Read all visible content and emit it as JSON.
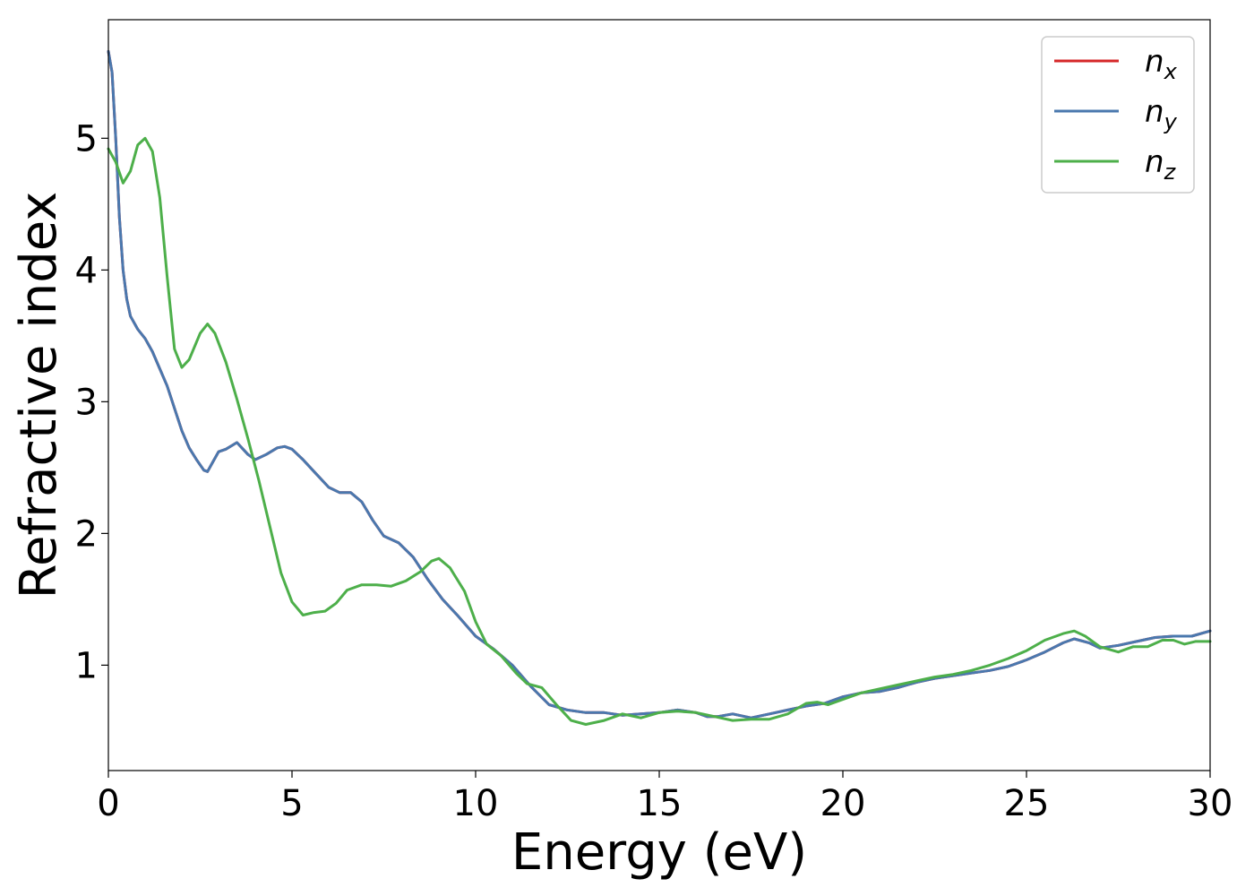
{
  "chart_data": {
    "type": "line",
    "xlabel": "Energy (eV)",
    "ylabel": "Refractive index",
    "xlim": [
      0,
      30
    ],
    "ylim": [
      0.2,
      5.9
    ],
    "xticks": [
      "0",
      "5",
      "10",
      "15",
      "20",
      "25",
      "30"
    ],
    "yticks": [
      "1",
      "2",
      "3",
      "4",
      "5"
    ],
    "grid": false,
    "legend_position": "top-right",
    "series": [
      {
        "name": "n",
        "sub": "x",
        "color": "#d62728",
        "points": [
          [
            0,
            5.66
          ],
          [
            0.1,
            5.5
          ],
          [
            0.2,
            5.0
          ],
          [
            0.3,
            4.4
          ],
          [
            0.4,
            4.0
          ],
          [
            0.5,
            3.78
          ],
          [
            0.6,
            3.65
          ],
          [
            0.8,
            3.55
          ],
          [
            1.0,
            3.48
          ],
          [
            1.2,
            3.38
          ],
          [
            1.4,
            3.25
          ],
          [
            1.6,
            3.12
          ],
          [
            1.8,
            2.95
          ],
          [
            2.0,
            2.78
          ],
          [
            2.2,
            2.65
          ],
          [
            2.4,
            2.56
          ],
          [
            2.6,
            2.48
          ],
          [
            2.7,
            2.47
          ],
          [
            2.8,
            2.52
          ],
          [
            3.0,
            2.62
          ],
          [
            3.2,
            2.64
          ],
          [
            3.5,
            2.69
          ],
          [
            3.8,
            2.6
          ],
          [
            4.0,
            2.56
          ],
          [
            4.3,
            2.6
          ],
          [
            4.6,
            2.65
          ],
          [
            4.8,
            2.66
          ],
          [
            5.0,
            2.64
          ],
          [
            5.3,
            2.56
          ],
          [
            5.6,
            2.47
          ],
          [
            6.0,
            2.35
          ],
          [
            6.3,
            2.31
          ],
          [
            6.6,
            2.31
          ],
          [
            6.9,
            2.24
          ],
          [
            7.2,
            2.1
          ],
          [
            7.5,
            1.98
          ],
          [
            7.9,
            1.93
          ],
          [
            8.3,
            1.82
          ],
          [
            8.7,
            1.65
          ],
          [
            9.1,
            1.5
          ],
          [
            9.5,
            1.38
          ],
          [
            10.0,
            1.22
          ],
          [
            10.5,
            1.12
          ],
          [
            11.0,
            1.0
          ],
          [
            11.5,
            0.84
          ],
          [
            12.0,
            0.7
          ],
          [
            12.5,
            0.66
          ],
          [
            13.0,
            0.64
          ],
          [
            13.5,
            0.64
          ],
          [
            14.0,
            0.62
          ],
          [
            14.5,
            0.63
          ],
          [
            15.0,
            0.64
          ],
          [
            15.5,
            0.66
          ],
          [
            16.0,
            0.64
          ],
          [
            16.3,
            0.61
          ],
          [
            16.6,
            0.61
          ],
          [
            17.0,
            0.63
          ],
          [
            17.5,
            0.6
          ],
          [
            18.0,
            0.63
          ],
          [
            18.5,
            0.66
          ],
          [
            19.0,
            0.69
          ],
          [
            19.5,
            0.71
          ],
          [
            20.0,
            0.76
          ],
          [
            20.5,
            0.79
          ],
          [
            21.0,
            0.8
          ],
          [
            21.5,
            0.83
          ],
          [
            22.0,
            0.87
          ],
          [
            22.5,
            0.9
          ],
          [
            23.0,
            0.92
          ],
          [
            23.5,
            0.94
          ],
          [
            24.0,
            0.96
          ],
          [
            24.5,
            0.99
          ],
          [
            25.0,
            1.04
          ],
          [
            25.5,
            1.1
          ],
          [
            26.0,
            1.17
          ],
          [
            26.3,
            1.2
          ],
          [
            26.7,
            1.17
          ],
          [
            27.0,
            1.13
          ],
          [
            27.5,
            1.15
          ],
          [
            28.0,
            1.18
          ],
          [
            28.5,
            1.21
          ],
          [
            29.0,
            1.22
          ],
          [
            29.5,
            1.22
          ],
          [
            30.0,
            1.26
          ]
        ]
      },
      {
        "name": "n",
        "sub": "y",
        "color": "#4a78ae",
        "points": [
          [
            0,
            5.66
          ],
          [
            0.1,
            5.5
          ],
          [
            0.2,
            5.0
          ],
          [
            0.3,
            4.4
          ],
          [
            0.4,
            4.0
          ],
          [
            0.5,
            3.78
          ],
          [
            0.6,
            3.65
          ],
          [
            0.8,
            3.55
          ],
          [
            1.0,
            3.48
          ],
          [
            1.2,
            3.38
          ],
          [
            1.4,
            3.25
          ],
          [
            1.6,
            3.12
          ],
          [
            1.8,
            2.95
          ],
          [
            2.0,
            2.78
          ],
          [
            2.2,
            2.65
          ],
          [
            2.4,
            2.56
          ],
          [
            2.6,
            2.48
          ],
          [
            2.7,
            2.47
          ],
          [
            2.8,
            2.52
          ],
          [
            3.0,
            2.62
          ],
          [
            3.2,
            2.64
          ],
          [
            3.5,
            2.69
          ],
          [
            3.8,
            2.6
          ],
          [
            4.0,
            2.56
          ],
          [
            4.3,
            2.6
          ],
          [
            4.6,
            2.65
          ],
          [
            4.8,
            2.66
          ],
          [
            5.0,
            2.64
          ],
          [
            5.3,
            2.56
          ],
          [
            5.6,
            2.47
          ],
          [
            6.0,
            2.35
          ],
          [
            6.3,
            2.31
          ],
          [
            6.6,
            2.31
          ],
          [
            6.9,
            2.24
          ],
          [
            7.2,
            2.1
          ],
          [
            7.5,
            1.98
          ],
          [
            7.9,
            1.93
          ],
          [
            8.3,
            1.82
          ],
          [
            8.7,
            1.65
          ],
          [
            9.1,
            1.5
          ],
          [
            9.5,
            1.38
          ],
          [
            10.0,
            1.22
          ],
          [
            10.5,
            1.12
          ],
          [
            11.0,
            1.0
          ],
          [
            11.5,
            0.84
          ],
          [
            12.0,
            0.7
          ],
          [
            12.5,
            0.66
          ],
          [
            13.0,
            0.64
          ],
          [
            13.5,
            0.64
          ],
          [
            14.0,
            0.62
          ],
          [
            14.5,
            0.63
          ],
          [
            15.0,
            0.64
          ],
          [
            15.5,
            0.66
          ],
          [
            16.0,
            0.64
          ],
          [
            16.3,
            0.61
          ],
          [
            16.6,
            0.61
          ],
          [
            17.0,
            0.63
          ],
          [
            17.5,
            0.6
          ],
          [
            18.0,
            0.63
          ],
          [
            18.5,
            0.66
          ],
          [
            19.0,
            0.69
          ],
          [
            19.5,
            0.71
          ],
          [
            20.0,
            0.76
          ],
          [
            20.5,
            0.79
          ],
          [
            21.0,
            0.8
          ],
          [
            21.5,
            0.83
          ],
          [
            22.0,
            0.87
          ],
          [
            22.5,
            0.9
          ],
          [
            23.0,
            0.92
          ],
          [
            23.5,
            0.94
          ],
          [
            24.0,
            0.96
          ],
          [
            24.5,
            0.99
          ],
          [
            25.0,
            1.04
          ],
          [
            25.5,
            1.1
          ],
          [
            26.0,
            1.17
          ],
          [
            26.3,
            1.2
          ],
          [
            26.7,
            1.17
          ],
          [
            27.0,
            1.13
          ],
          [
            27.5,
            1.15
          ],
          [
            28.0,
            1.18
          ],
          [
            28.5,
            1.21
          ],
          [
            29.0,
            1.22
          ],
          [
            29.5,
            1.22
          ],
          [
            30.0,
            1.26
          ]
        ]
      },
      {
        "name": "n",
        "sub": "z",
        "color": "#4daf4a",
        "points": [
          [
            0,
            4.92
          ],
          [
            0.2,
            4.82
          ],
          [
            0.4,
            4.66
          ],
          [
            0.6,
            4.75
          ],
          [
            0.8,
            4.95
          ],
          [
            1.0,
            5.0
          ],
          [
            1.2,
            4.9
          ],
          [
            1.4,
            4.55
          ],
          [
            1.6,
            3.95
          ],
          [
            1.8,
            3.4
          ],
          [
            2.0,
            3.26
          ],
          [
            2.2,
            3.32
          ],
          [
            2.5,
            3.52
          ],
          [
            2.7,
            3.59
          ],
          [
            2.9,
            3.52
          ],
          [
            3.2,
            3.3
          ],
          [
            3.5,
            3.02
          ],
          [
            3.8,
            2.72
          ],
          [
            4.1,
            2.4
          ],
          [
            4.4,
            2.05
          ],
          [
            4.7,
            1.7
          ],
          [
            5.0,
            1.48
          ],
          [
            5.3,
            1.38
          ],
          [
            5.6,
            1.4
          ],
          [
            5.9,
            1.41
          ],
          [
            6.2,
            1.47
          ],
          [
            6.5,
            1.57
          ],
          [
            6.9,
            1.61
          ],
          [
            7.3,
            1.61
          ],
          [
            7.7,
            1.6
          ],
          [
            8.1,
            1.64
          ],
          [
            8.5,
            1.71
          ],
          [
            8.8,
            1.79
          ],
          [
            9.0,
            1.81
          ],
          [
            9.3,
            1.74
          ],
          [
            9.7,
            1.56
          ],
          [
            10.0,
            1.33
          ],
          [
            10.3,
            1.16
          ],
          [
            10.7,
            1.07
          ],
          [
            11.1,
            0.94
          ],
          [
            11.4,
            0.86
          ],
          [
            11.8,
            0.83
          ],
          [
            12.2,
            0.7
          ],
          [
            12.6,
            0.58
          ],
          [
            13.0,
            0.55
          ],
          [
            13.5,
            0.58
          ],
          [
            14.0,
            0.63
          ],
          [
            14.5,
            0.6
          ],
          [
            15.0,
            0.64
          ],
          [
            15.5,
            0.65
          ],
          [
            16.0,
            0.64
          ],
          [
            16.5,
            0.61
          ],
          [
            17.0,
            0.58
          ],
          [
            17.5,
            0.59
          ],
          [
            18.0,
            0.59
          ],
          [
            18.5,
            0.63
          ],
          [
            19.0,
            0.71
          ],
          [
            19.3,
            0.72
          ],
          [
            19.6,
            0.7
          ],
          [
            20.0,
            0.74
          ],
          [
            20.5,
            0.79
          ],
          [
            21.0,
            0.82
          ],
          [
            21.5,
            0.85
          ],
          [
            22.0,
            0.88
          ],
          [
            22.5,
            0.91
          ],
          [
            23.0,
            0.93
          ],
          [
            23.5,
            0.96
          ],
          [
            24.0,
            1.0
          ],
          [
            24.5,
            1.05
          ],
          [
            25.0,
            1.11
          ],
          [
            25.5,
            1.19
          ],
          [
            26.0,
            1.24
          ],
          [
            26.3,
            1.26
          ],
          [
            26.6,
            1.22
          ],
          [
            27.0,
            1.14
          ],
          [
            27.5,
            1.1
          ],
          [
            27.9,
            1.14
          ],
          [
            28.3,
            1.14
          ],
          [
            28.7,
            1.19
          ],
          [
            29.0,
            1.19
          ],
          [
            29.3,
            1.16
          ],
          [
            29.6,
            1.18
          ],
          [
            30.0,
            1.18
          ]
        ]
      }
    ]
  }
}
